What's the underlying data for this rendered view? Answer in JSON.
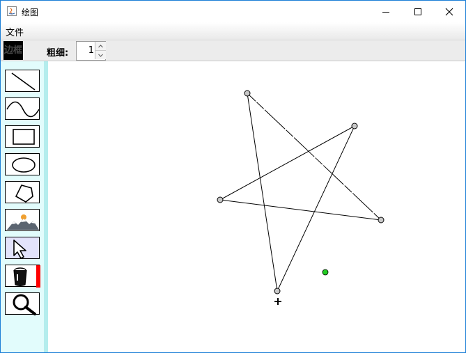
{
  "window": {
    "title": "绘图"
  },
  "menu": {
    "file_label": "文件"
  },
  "toolbar": {
    "border_label": "边框",
    "thickness_label": "粗细:",
    "thickness_value": "1"
  },
  "tools": [
    {
      "name": "line-tool",
      "icon": "line-icon"
    },
    {
      "name": "curve-tool",
      "icon": "curve-icon"
    },
    {
      "name": "rectangle-tool",
      "icon": "rectangle-icon"
    },
    {
      "name": "ellipse-tool",
      "icon": "ellipse-icon"
    },
    {
      "name": "polygon-tool",
      "icon": "pentagon-icon"
    },
    {
      "name": "image-tool",
      "icon": "landscape-icon"
    },
    {
      "name": "select-tool",
      "icon": "cursor-arrow-icon",
      "selected": true
    },
    {
      "name": "fill-tool",
      "icon": "paint-bucket-icon"
    },
    {
      "name": "zoom-tool",
      "icon": "magnifier-icon"
    }
  ],
  "colors": {
    "fill_color": "#ff0000",
    "panel_background": "#e2fcfc",
    "control_point_fill": "#c8c8c8",
    "highlight_point": "#22cc22"
  }
}
